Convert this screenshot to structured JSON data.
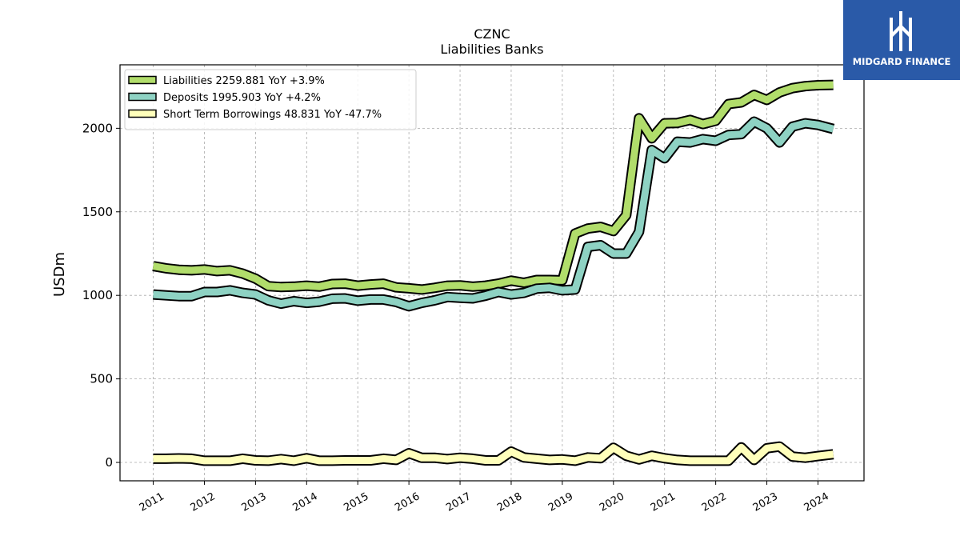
{
  "brand": {
    "name": "MIDGARD FINANCE",
    "bg_color": "#2a5aa8"
  },
  "chart_data": {
    "type": "line",
    "title": "CZNC",
    "subtitle": "Liabilities Banks",
    "xlabel": "",
    "ylabel": "USDm",
    "xlim": [
      2010.35,
      2024.9
    ],
    "ylim": [
      -110,
      2380
    ],
    "x_ticks": [
      2011,
      2012,
      2013,
      2014,
      2015,
      2016,
      2017,
      2018,
      2019,
      2020,
      2021,
      2022,
      2023,
      2024
    ],
    "y_ticks": [
      0,
      500,
      1000,
      1500,
      2000
    ],
    "grid": true,
    "legend_position": "top-left",
    "x": [
      2011.0,
      2011.25,
      2011.5,
      2011.75,
      2012.0,
      2012.25,
      2012.5,
      2012.75,
      2013.0,
      2013.25,
      2013.5,
      2013.75,
      2014.0,
      2014.25,
      2014.5,
      2014.75,
      2015.0,
      2015.25,
      2015.5,
      2015.75,
      2016.0,
      2016.25,
      2016.5,
      2016.75,
      2017.0,
      2017.25,
      2017.5,
      2017.75,
      2018.0,
      2018.25,
      2018.5,
      2018.75,
      2019.0,
      2019.25,
      2019.5,
      2019.75,
      2020.0,
      2020.25,
      2020.5,
      2020.75,
      2021.0,
      2021.25,
      2021.5,
      2021.75,
      2022.0,
      2022.25,
      2022.5,
      2022.75,
      2023.0,
      2023.25,
      2023.5,
      2023.75,
      2024.0,
      2024.3
    ],
    "series": [
      {
        "name": "Liabilities",
        "legend": "Liabilities  2259.881 YoY +3.9%",
        "color": "#b1dd6b",
        "values": [
          1175,
          1162,
          1153,
          1150,
          1155,
          1145,
          1150,
          1130,
          1100,
          1055,
          1050,
          1052,
          1058,
          1052,
          1068,
          1070,
          1058,
          1065,
          1070,
          1048,
          1042,
          1035,
          1045,
          1058,
          1060,
          1052,
          1058,
          1070,
          1088,
          1075,
          1092,
          1092,
          1090,
          1370,
          1400,
          1410,
          1385,
          1480,
          2060,
          1940,
          2030,
          2032,
          2050,
          2025,
          2045,
          2145,
          2155,
          2200,
          2170,
          2215,
          2240,
          2252,
          2258,
          2260
        ]
      },
      {
        "name": "Deposits",
        "legend": "Deposits  1995.903 YoY +4.2%",
        "color": "#8ed2c3",
        "values": [
          1005,
          1000,
          995,
          995,
          1020,
          1020,
          1030,
          1015,
          1005,
          970,
          950,
          965,
          955,
          962,
          980,
          982,
          968,
          975,
          975,
          960,
          935,
          955,
          970,
          990,
          985,
          982,
          998,
          1020,
          1005,
          1015,
          1040,
          1045,
          1030,
          1035,
          1290,
          1300,
          1250,
          1250,
          1380,
          1870,
          1820,
          1920,
          1915,
          1935,
          1925,
          1960,
          1965,
          2040,
          2000,
          1915,
          2010,
          2030,
          2020,
          1996
        ]
      },
      {
        "name": "Short Term Borrowings",
        "legend": "Short Term Borrowings  48.831 YoY -47.7%",
        "color": "#ffffbb",
        "values": [
          22,
          22,
          24,
          22,
          10,
          10,
          10,
          22,
          12,
          10,
          20,
          10,
          25,
          10,
          10,
          12,
          12,
          12,
          22,
          15,
          55,
          28,
          28,
          20,
          28,
          22,
          12,
          12,
          65,
          30,
          22,
          15,
          18,
          10,
          30,
          25,
          88,
          40,
          18,
          40,
          25,
          15,
          10,
          10,
          10,
          10,
          90,
          15,
          85,
          95,
          35,
          28,
          38,
          49
        ]
      }
    ]
  }
}
